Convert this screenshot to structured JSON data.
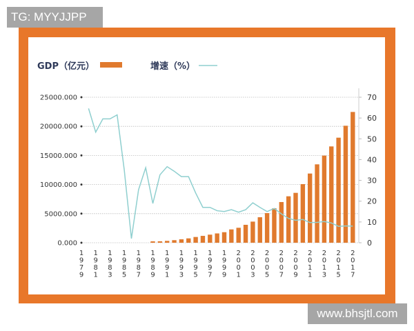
{
  "tag_label": "TG: MYYJJPP",
  "watermark": "www.bhsjtl.com",
  "colors": {
    "frame": "#e8772a",
    "bar": "#e07a2e",
    "line": "#8fcfcf",
    "text": "#2f3a5a"
  },
  "chart_data": {
    "type": "bar+line",
    "legend": [
      {
        "name": "GDP（亿元）",
        "type": "bar",
        "axis": "left"
      },
      {
        "name": "增速（%）",
        "type": "line",
        "axis": "right"
      }
    ],
    "legend_position": "top-left",
    "grid": true,
    "x_tick_labels": [
      "1979",
      "1981",
      "1983",
      "1985",
      "1987",
      "1989",
      "1991",
      "1993",
      "1995",
      "1997",
      "1999",
      "2001",
      "2003",
      "2005",
      "2007",
      "2009",
      "2011",
      "2013",
      "2015",
      "2017"
    ],
    "left_axis": {
      "ylim": [
        0,
        25000
      ],
      "ticks": [
        "0.000",
        "5000.000",
        "10000.000",
        "15000.000",
        "20000.000",
        "25000.000"
      ]
    },
    "right_axis": {
      "ylim": [
        0,
        70
      ],
      "ticks": [
        "0",
        "10",
        "20",
        "30",
        "40",
        "50",
        "60",
        "70"
      ]
    },
    "series": [
      {
        "name": "GDP（亿元）",
        "type": "bar",
        "x": [
          1989,
          1990,
          1991,
          1992,
          1993,
          1994,
          1995,
          1996,
          1997,
          1998,
          1999,
          2000,
          2001,
          2002,
          2003,
          2004,
          2005,
          2006,
          2007,
          2008,
          2009,
          2010,
          2011,
          2012,
          2013,
          2014,
          2015,
          2016,
          2017
        ],
        "values": [
          240,
          250,
          320,
          440,
          590,
          750,
          990,
          1180,
          1390,
          1600,
          1810,
          2290,
          2570,
          3080,
          3630,
          4380,
          5090,
          5920,
          6990,
          7980,
          8570,
          10070,
          11890,
          13470,
          14970,
          16550,
          18050,
          20100,
          22470
        ]
      },
      {
        "name": "增速（%）",
        "type": "line",
        "x": [
          1980,
          1981,
          1982,
          1983,
          1984,
          1985,
          1986,
          1987,
          1988,
          1989,
          1990,
          1991,
          1992,
          1993,
          1994,
          1995,
          1996,
          1997,
          1998,
          1999,
          2000,
          2001,
          2002,
          2003,
          2004,
          2005,
          2006,
          2007,
          2008,
          2009,
          2010,
          2011,
          2012,
          2013,
          2014,
          2015,
          2016,
          2017
        ],
        "values": [
          64.6,
          53.2,
          59.6,
          59.6,
          61.5,
          35,
          2.0,
          25.5,
          36.1,
          18.9,
          32.7,
          36.6,
          34.4,
          31.8,
          31.8,
          23.9,
          17.0,
          17.0,
          15.4,
          15.0,
          15.9,
          14.7,
          15.9,
          19.2,
          17.0,
          15.0,
          16.5,
          13.9,
          11.7,
          10.8,
          11.2,
          9.7,
          9.8,
          10.2,
          9.5,
          7.9,
          8.1,
          8.0
        ]
      }
    ]
  }
}
